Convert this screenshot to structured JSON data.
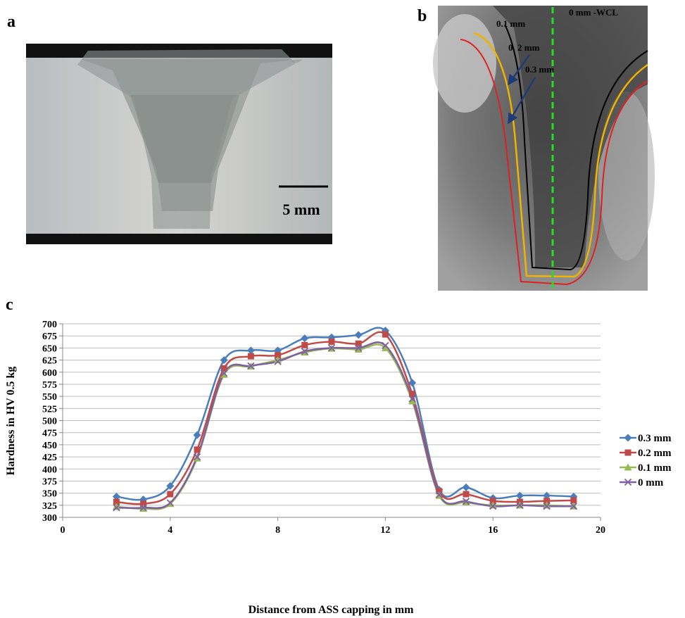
{
  "panels": {
    "a": {
      "label": "a",
      "scale_bar": "5 mm"
    },
    "b": {
      "label": "b",
      "lines": [
        "0.1 mm",
        "0. 2 mm",
        "0.3 mm"
      ],
      "center_line": "0 mm -WCL"
    },
    "c": {
      "label": "c"
    }
  },
  "chart_data": {
    "type": "line",
    "x_label": "Distance from ASS capping in mm",
    "y_label": "Hardness in HV 0.5 kg",
    "x": [
      2,
      3,
      4,
      5,
      6,
      7,
      8,
      9,
      10,
      11,
      12,
      13,
      14,
      15,
      16,
      17,
      18,
      19
    ],
    "series": [
      {
        "name": "0.3 mm",
        "color": "#4a7ebb",
        "marker": "diamond",
        "values": [
          343,
          337,
          365,
          470,
          625,
          645,
          645,
          670,
          672,
          677,
          686,
          578,
          357,
          362,
          340,
          345,
          345,
          343
        ]
      },
      {
        "name": "0.2 mm",
        "color": "#be4b48",
        "marker": "square",
        "values": [
          332,
          328,
          348,
          440,
          608,
          633,
          635,
          656,
          663,
          659,
          678,
          555,
          354,
          348,
          334,
          332,
          334,
          335
        ]
      },
      {
        "name": "0.1 mm",
        "color": "#98b954",
        "marker": "triangle",
        "values": [
          322,
          318,
          328,
          422,
          595,
          612,
          625,
          641,
          649,
          647,
          650,
          540,
          345,
          331,
          325,
          325,
          325,
          323
        ]
      },
      {
        "name": "0 mm",
        "color": "#7d60a0",
        "marker": "cross",
        "values": [
          320,
          320,
          330,
          425,
          598,
          613,
          622,
          643,
          650,
          650,
          655,
          545,
          347,
          333,
          323,
          325,
          323,
          323
        ]
      }
    ],
    "xlim": [
      0,
      20
    ],
    "xticks": [
      0,
      4,
      8,
      12,
      16,
      20
    ],
    "ylim": [
      300,
      700
    ],
    "yticks": [
      300,
      325,
      350,
      375,
      400,
      425,
      450,
      475,
      500,
      525,
      550,
      575,
      600,
      625,
      650,
      675,
      700
    ],
    "grid": true,
    "legend": "right"
  }
}
